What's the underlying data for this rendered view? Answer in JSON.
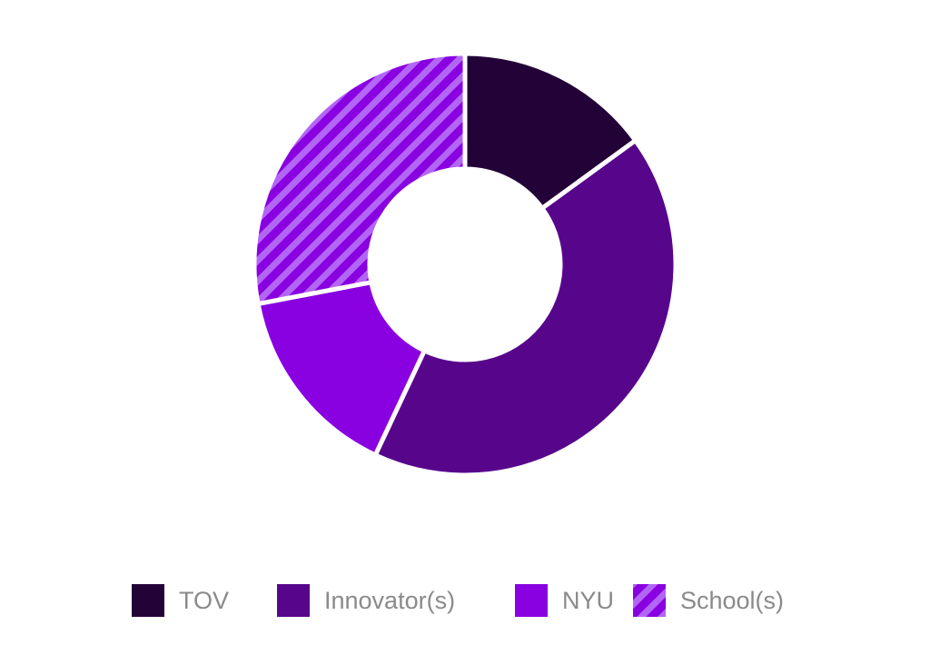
{
  "chart_data": {
    "type": "donut",
    "categories": [
      "TOV",
      "Innovator(s)",
      "NYU",
      "School(s)"
    ],
    "values": [
      15,
      42,
      15,
      28
    ],
    "colors": [
      "#230238",
      "#57068c",
      "#8900e1",
      "#8900e1"
    ],
    "hatch": [
      false,
      false,
      false,
      true
    ],
    "hatch_color": "#b366f5"
  }
}
